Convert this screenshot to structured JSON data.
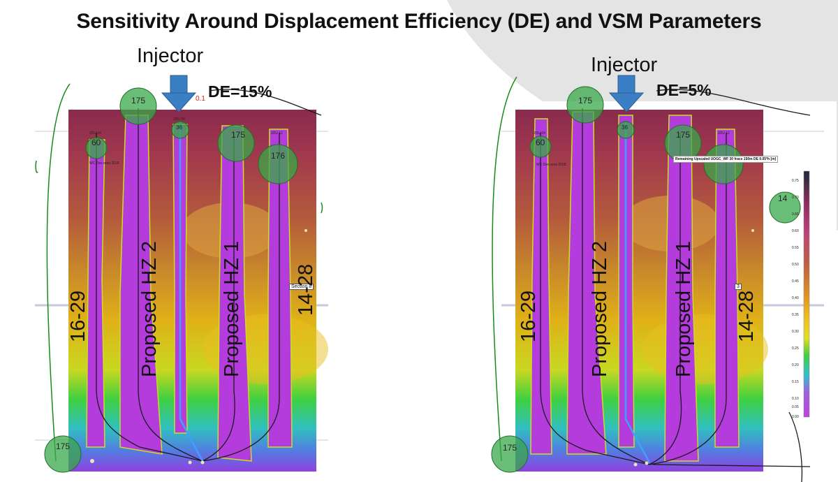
{
  "title": "Sensitivity Around Displacement Efficiency (DE) and VSM Parameters",
  "panels": [
    {
      "injector": "Injector",
      "de": "DE=15%",
      "wells": [
        "16-29",
        "Proposed HZ 2",
        "Proposed HZ 1",
        "14-28"
      ],
      "circle_labels": [
        "175",
        "60",
        "175",
        "176",
        "175",
        "36"
      ],
      "red_label": "0.1",
      "small_labels": [
        "2DU 04",
        "2DU 04",
        "2DU 12",
        "WC Dev area 2018"
      ],
      "section_tag": "Section 8"
    },
    {
      "injector": "Injector",
      "de": "DE=5%",
      "wells": [
        "16-29",
        "Proposed HZ 2",
        "Proposed HZ 1",
        "14-28"
      ],
      "circle_labels": [
        "175",
        "60",
        "175",
        "14",
        "175",
        "36"
      ],
      "small_labels": [
        "2DU 04",
        "2DU 12",
        "WC Dev area 2018"
      ],
      "section_tag": "3",
      "colorbar": {
        "title": "Remaining Upscaled UOGC_WF 30 fracs 150m DE 0.05*h [m]",
        "ticks": [
          "0.75",
          "0.70",
          "0.65",
          "0.60",
          "0.55",
          "0.50",
          "0.45",
          "0.40",
          "0.35",
          "0.30",
          "0.25",
          "0.20",
          "0.15",
          "0.10",
          "0.05",
          "0.00"
        ]
      }
    }
  ],
  "colors": {
    "injector_arrow": "#3a7fc4",
    "plume": "#b43cdc",
    "well_circle": "#3aa84a"
  }
}
